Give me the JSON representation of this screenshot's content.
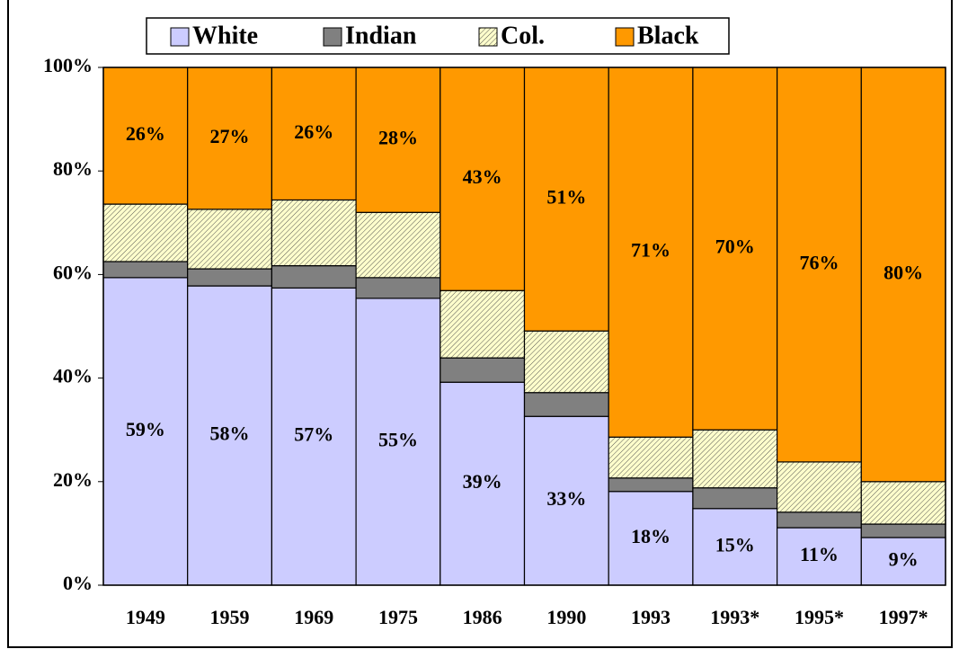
{
  "chart_data": {
    "type": "stacked_bar",
    "categories": [
      "1949",
      "1959",
      "1969",
      "1975",
      "1986",
      "1990",
      "1993",
      "1993*",
      "1995*",
      "1997*"
    ],
    "series": [
      {
        "name": "White",
        "color": "#ccccff",
        "values": [
          59.4,
          57.8,
          57.4,
          55.4,
          39.2,
          32.6,
          18.1,
          14.8,
          11.1,
          9.2
        ],
        "value_labels": [
          "59%",
          "58%",
          "57%",
          "55%",
          "39%",
          "33%",
          "18%",
          "15%",
          "11%",
          "9%"
        ]
      },
      {
        "name": "Indian",
        "color": "#808080",
        "values": [
          3.1,
          3.3,
          4.3,
          4.0,
          4.7,
          4.6,
          2.6,
          4.0,
          3.0,
          2.6
        ]
      },
      {
        "name": "Col.",
        "color": "#ffffcc",
        "hatch": true,
        "values": [
          11.1,
          11.5,
          12.7,
          12.6,
          13.0,
          11.9,
          7.9,
          11.2,
          9.7,
          8.2
        ]
      },
      {
        "name": "Black",
        "color": "#ff9900",
        "values": [
          26.4,
          27.4,
          25.6,
          28.0,
          43.1,
          50.9,
          71.4,
          70.0,
          76.2,
          80.0
        ],
        "value_labels": [
          "26%",
          "27%",
          "26%",
          "28%",
          "43%",
          "51%",
          "71%",
          "70%",
          "76%",
          "80%"
        ]
      }
    ],
    "ylim": [
      0,
      100
    ],
    "yticks": [
      {
        "value": 0,
        "label": "0%"
      },
      {
        "value": 20,
        "label": "20%"
      },
      {
        "value": 40,
        "label": "40%"
      },
      {
        "value": 60,
        "label": "60%"
      },
      {
        "value": 80,
        "label": "80%"
      },
      {
        "value": 100,
        "label": "100%"
      }
    ],
    "legend": "top"
  }
}
